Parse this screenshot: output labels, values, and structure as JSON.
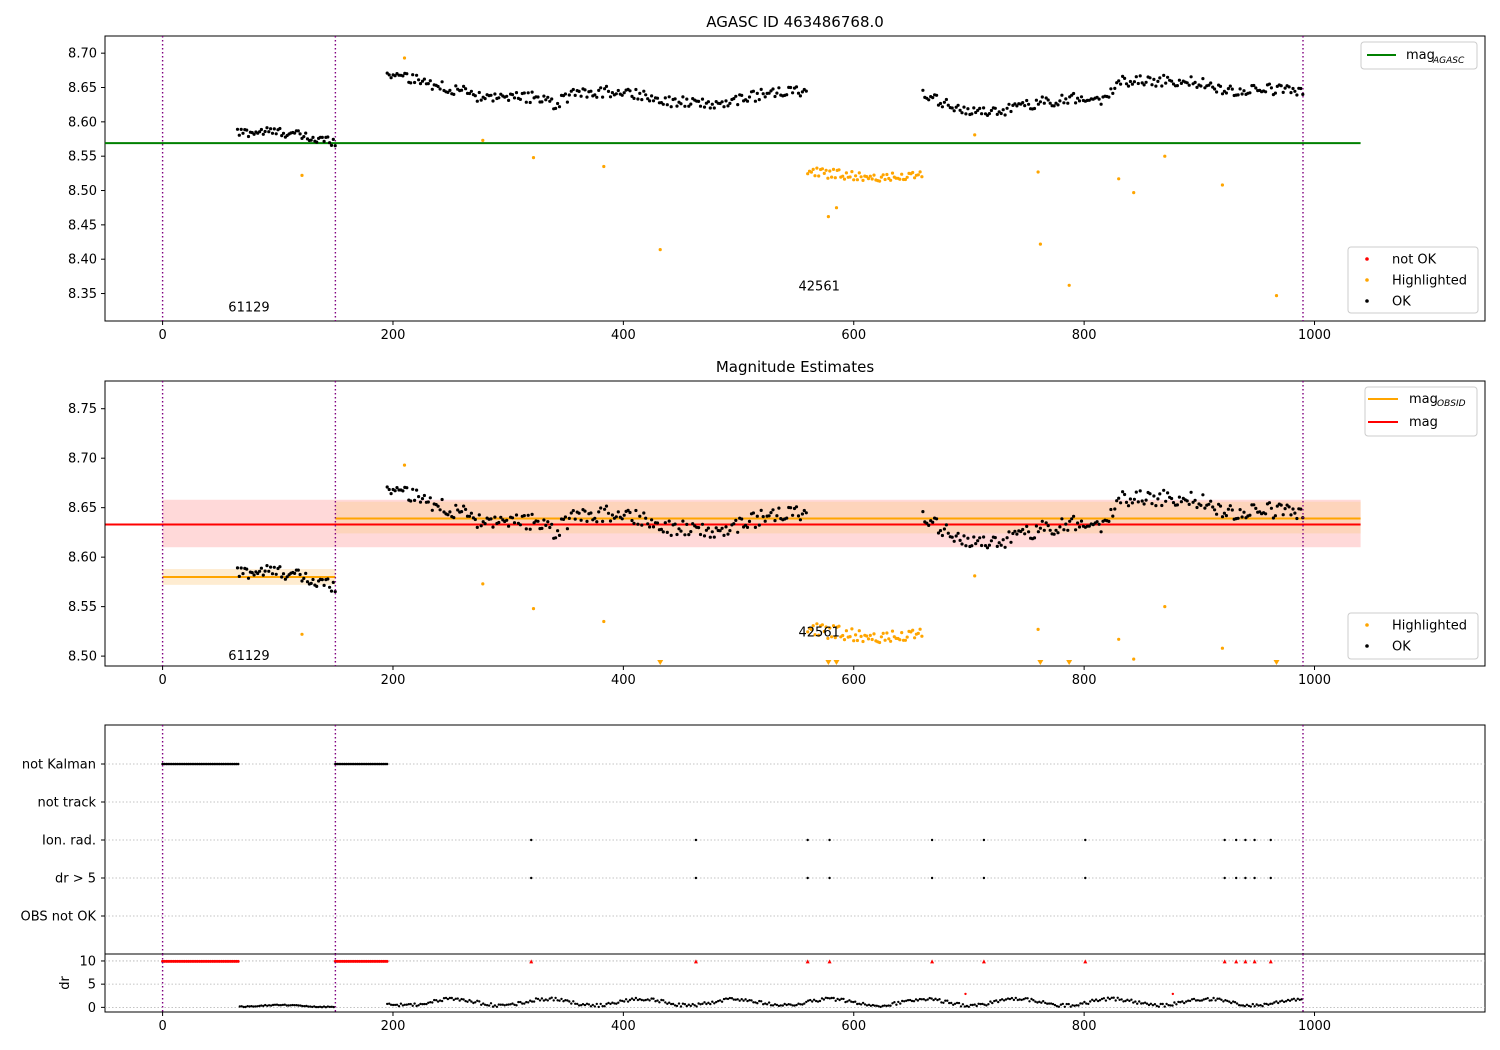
{
  "figure": {
    "title": "AGASC ID 463486768.0"
  },
  "colors": {
    "ok": "#000000",
    "highlighted": "#ffa500",
    "not_ok": "#ff0000",
    "mag_agasc": "#008000",
    "mag_obsid": "#ffa500",
    "mag": "#ff0000",
    "obs_boundary": "#800080",
    "purple_line": "#800080"
  },
  "x_ticks": [
    0,
    200,
    400,
    600,
    800,
    1000
  ],
  "observations": [
    {
      "obsid": "61129",
      "start": 0,
      "end": 150
    },
    {
      "obsid": "42561",
      "start": 150,
      "end": 990
    }
  ],
  "chart_data": [
    {
      "type": "scatter",
      "title": "AGASC ID 463486768.0",
      "xlim": [
        -50,
        1148
      ],
      "ylim": [
        8.31,
        8.725
      ],
      "y_ticks": [
        "8.35",
        "8.40",
        "8.45",
        "8.50",
        "8.55",
        "8.60",
        "8.65",
        "8.70"
      ],
      "legend_lines": [
        {
          "name": "mag",
          "sub": "AGASC",
          "color_key": "mag_agasc"
        }
      ],
      "legend_points": [
        {
          "name": "not OK",
          "color_key": "not_ok"
        },
        {
          "name": "Highlighted",
          "color_key": "highlighted"
        },
        {
          "name": "OK",
          "color_key": "ok"
        }
      ],
      "hlines": [
        {
          "name": "mag_AGASC",
          "y": 8.569,
          "x": [
            -50,
            1040
          ],
          "color_key": "mag_agasc"
        }
      ],
      "segments_ok": [
        {
          "x0": 65,
          "x1": 150,
          "levels": [
            [
              65,
              8.584
            ],
            [
              90,
              8.586
            ],
            [
              110,
              8.584
            ],
            [
              130,
              8.575
            ],
            [
              150,
              8.572
            ]
          ],
          "noise": 0.007,
          "step": 1.6
        },
        {
          "x0": 195,
          "x1": 560,
          "levels": [
            [
              195,
              8.672
            ],
            [
              215,
              8.662
            ],
            [
              260,
              8.645
            ],
            [
              280,
              8.632
            ],
            [
              320,
              8.636
            ],
            [
              340,
              8.626
            ],
            [
              360,
              8.642
            ],
            [
              400,
              8.645
            ],
            [
              440,
              8.63
            ],
            [
              480,
              8.625
            ],
            [
              520,
              8.64
            ],
            [
              560,
              8.645
            ]
          ],
          "noise": 0.008,
          "step": 1.7
        },
        {
          "x0": 660,
          "x1": 990,
          "levels": [
            [
              660,
              8.638
            ],
            [
              690,
              8.62
            ],
            [
              720,
              8.612
            ],
            [
              760,
              8.628
            ],
            [
              800,
              8.636
            ],
            [
              820,
              8.632
            ],
            [
              830,
              8.66
            ],
            [
              870,
              8.66
            ],
            [
              900,
              8.657
            ],
            [
              930,
              8.644
            ],
            [
              960,
              8.648
            ],
            [
              990,
              8.645
            ]
          ],
          "noise": 0.008,
          "step": 1.7
        }
      ],
      "segments_highlighted": [
        {
          "x0": 560,
          "x1": 660,
          "levels": [
            [
              560,
              8.527
            ],
            [
              600,
              8.522
            ],
            [
              640,
              8.518
            ],
            [
              660,
              8.525
            ]
          ],
          "noise": 0.007,
          "step": 1.6
        }
      ],
      "highlighted_points": [
        [
          210,
          8.693
        ],
        [
          121,
          8.522
        ],
        [
          278,
          8.573
        ],
        [
          322,
          8.548
        ],
        [
          383,
          8.535
        ],
        [
          432,
          8.414
        ],
        [
          578,
          8.462
        ],
        [
          585,
          8.475
        ],
        [
          705,
          8.581
        ],
        [
          760,
          8.527
        ],
        [
          762,
          8.422
        ],
        [
          787,
          8.362
        ],
        [
          830,
          8.517
        ],
        [
          843,
          8.497
        ],
        [
          870,
          8.55
        ],
        [
          920,
          8.508
        ],
        [
          967,
          8.347
        ]
      ],
      "obsid_labels": [
        {
          "text": "61129",
          "x": 75,
          "y": 8.33
        },
        {
          "text": "42561",
          "x": 570,
          "y": 8.36
        }
      ]
    },
    {
      "type": "scatter",
      "title": "Magnitude Estimates",
      "xlim": [
        -50,
        1148
      ],
      "ylim": [
        8.49,
        8.778
      ],
      "y_ticks": [
        "8.50",
        "8.55",
        "8.60",
        "8.65",
        "8.70",
        "8.75"
      ],
      "legend_lines": [
        {
          "name": "mag",
          "sub": "OBSID",
          "color_key": "mag_obsid"
        },
        {
          "name": "mag",
          "sub": "",
          "color_key": "mag"
        }
      ],
      "legend_points": [
        {
          "name": "Highlighted",
          "color_key": "highlighted"
        },
        {
          "name": "OK",
          "color_key": "ok"
        }
      ],
      "bands": [
        {
          "name": "mag-band",
          "x": [
            0,
            1040
          ],
          "y": [
            8.61,
            8.658
          ],
          "color": "#ffcccc"
        },
        {
          "name": "mag-obsid-band-61129",
          "x": [
            0,
            150
          ],
          "y": [
            8.572,
            8.588
          ],
          "color": "#fde5c2"
        },
        {
          "name": "mag-obsid-band-42561",
          "x": [
            150,
            1040
          ],
          "y": [
            8.624,
            8.656
          ],
          "color": "#fcd2b0"
        }
      ],
      "hlines": [
        {
          "name": "mag_OBSID-61129",
          "y": 8.58,
          "x": [
            0,
            150
          ],
          "color_key": "mag_obsid"
        },
        {
          "name": "mag_OBSID-42561",
          "y": 8.639,
          "x": [
            150,
            1040
          ],
          "color_key": "mag_obsid"
        },
        {
          "name": "mag",
          "y": 8.633,
          "x": [
            -50,
            1040
          ],
          "color_key": "mag"
        }
      ],
      "segments_ok": "same-as-panel-1",
      "highlighted_points": [
        [
          210,
          8.693
        ],
        [
          121,
          8.522
        ],
        [
          278,
          8.573
        ],
        [
          322,
          8.548
        ],
        [
          383,
          8.535
        ],
        [
          705,
          8.581
        ],
        [
          760,
          8.527
        ],
        [
          830,
          8.517
        ],
        [
          843,
          8.497
        ],
        [
          870,
          8.55
        ],
        [
          920,
          8.508
        ]
      ],
      "clipped_markers": [
        432,
        578,
        585,
        762,
        787,
        967
      ],
      "obsid_labels": [
        {
          "text": "61129",
          "x": 75,
          "y": 8.5
        },
        {
          "text": "42561",
          "x": 570,
          "y": 8.524
        }
      ]
    },
    {
      "type": "scatter",
      "title": "",
      "xlim": [
        -50,
        1148
      ],
      "flag_labels": [
        "not Kalman",
        "not track",
        "Ion. rad.",
        "dr > 5",
        "OBS not OK"
      ],
      "not_kalman_ranges": [
        [
          0,
          67
        ],
        [
          150,
          195
        ]
      ],
      "ion_rad_x": [
        320,
        463,
        560,
        579,
        668,
        713,
        801,
        922,
        932,
        940,
        948,
        962
      ],
      "dr_gt5_x": [
        320,
        463,
        560,
        579,
        668,
        713,
        801,
        922,
        932,
        940,
        948,
        962
      ],
      "dr_ylabel": "dr",
      "dr_y_ticks": [
        "0",
        "5",
        "10"
      ],
      "dr_ylim": [
        -1,
        11.5
      ],
      "dr_red_x": [
        320,
        463,
        560,
        579,
        668,
        713,
        801,
        922,
        932,
        940,
        948,
        962
      ],
      "dr_segments": [
        {
          "x0": 67,
          "x1": 150,
          "base": 0.3,
          "amp": 0.2
        },
        {
          "x0": 195,
          "x1": 990,
          "base": 1.1,
          "amp": 0.7
        }
      ],
      "dr_outliers": [
        [
          697,
          2.9
        ],
        [
          877,
          2.9
        ]
      ]
    }
  ]
}
